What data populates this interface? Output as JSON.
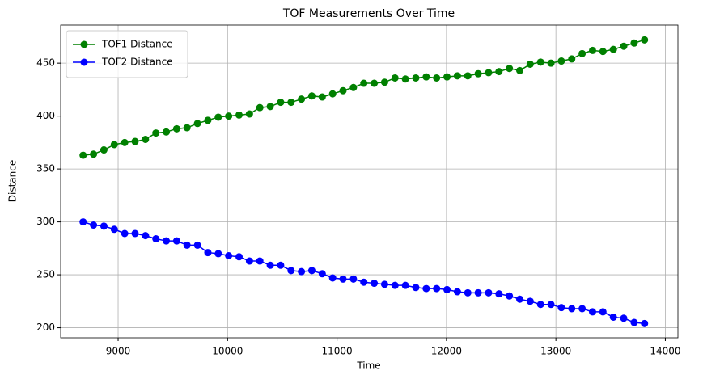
{
  "chart_data": {
    "type": "line",
    "title": "TOF Measurements Over Time",
    "xlabel": "Time",
    "ylabel": "Distance",
    "x": [
      8680,
      8775,
      8870,
      8965,
      9060,
      9155,
      9250,
      9345,
      9440,
      9535,
      9630,
      9725,
      9820,
      9915,
      10010,
      10105,
      10200,
      10295,
      10390,
      10485,
      10580,
      10675,
      10770,
      10865,
      10960,
      11055,
      11150,
      11245,
      11340,
      11435,
      11530,
      11625,
      11720,
      11815,
      11910,
      12005,
      12100,
      12195,
      12290,
      12385,
      12480,
      12575,
      12670,
      12765,
      12860,
      12955,
      13050,
      13145,
      13240,
      13335,
      13430,
      13525,
      13620,
      13715,
      13810
    ],
    "series": [
      {
        "name": "TOF1 Distance",
        "color": "#008000",
        "values": [
          363,
          364,
          368,
          373,
          375,
          376,
          378,
          384,
          385,
          388,
          389,
          393,
          396,
          399,
          400,
          401,
          402,
          408,
          409,
          413,
          413,
          416,
          419,
          418,
          421,
          424,
          427,
          431,
          431,
          432,
          436,
          435,
          436,
          437,
          436,
          437,
          438,
          438,
          440,
          441,
          442,
          445,
          443,
          449,
          451,
          450,
          452,
          454,
          459,
          462,
          461,
          463,
          466,
          469,
          472
        ]
      },
      {
        "name": "TOF2 Distance",
        "color": "#0000ff",
        "values": [
          300,
          297,
          296,
          293,
          289,
          289,
          287,
          284,
          282,
          282,
          278,
          278,
          271,
          270,
          268,
          267,
          263,
          263,
          259,
          259,
          254,
          253,
          254,
          251,
          247,
          246,
          246,
          243,
          242,
          241,
          240,
          240,
          238,
          237,
          237,
          236,
          234,
          233,
          233,
          233,
          232,
          230,
          227,
          225,
          222,
          222,
          219,
          218,
          218,
          215,
          215,
          210,
          209,
          205,
          204
        ]
      }
    ],
    "xlim": [
      8475,
      14115
    ],
    "xticks": [
      9000,
      10000,
      11000,
      12000,
      13000,
      14000
    ],
    "ylim": [
      190.5,
      486
    ],
    "yticks": [
      200,
      250,
      300,
      350,
      400,
      450
    ],
    "grid": true,
    "legend": "upper left"
  }
}
